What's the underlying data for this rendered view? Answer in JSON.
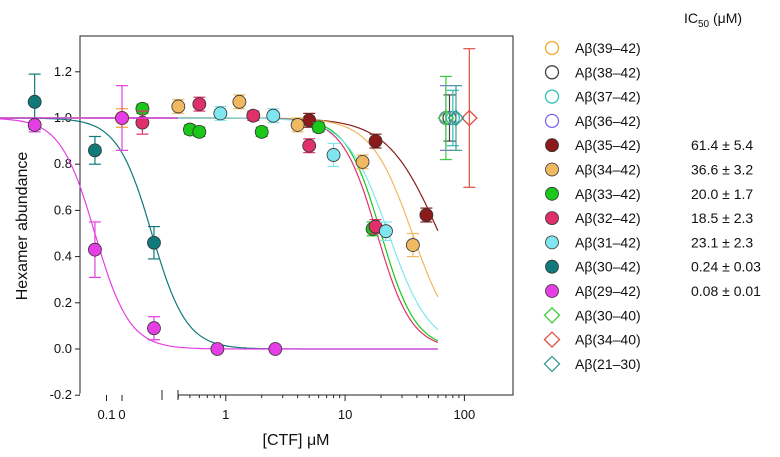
{
  "chart_data": {
    "type": "scatter",
    "ylabel": "Hexamer abundance",
    "xlabel": "[CTF] μM",
    "xscale": "log with separate zero panel",
    "ylim": [
      -0.2,
      1.3
    ],
    "yticks": [
      "-0.2",
      "0.0",
      "0.2",
      "0.4",
      "0.6",
      "0.8",
      "1.0",
      "1.2"
    ],
    "xticks": [
      "0",
      "0.01",
      "0.1",
      "1",
      "10",
      "100"
    ],
    "legend_placement": "right",
    "ic50_header": "IC",
    "ic50_sub": "50",
    "ic50_unit": " (μM)",
    "series": [
      {
        "name": "Aβ(39–42)",
        "color": "#F5A623",
        "marker": "open-circle",
        "ic50": "",
        "points": [
          {
            "x": 0,
            "y": 1.0,
            "err": 0.04
          }
        ]
      },
      {
        "name": "Aβ(38–42)",
        "color": "#444444",
        "marker": "open-circle",
        "ic50": "",
        "points": [
          {
            "x": 75,
            "y": 1.0,
            "err": 0.1
          }
        ]
      },
      {
        "name": "Aβ(37–42)",
        "color": "#2DBDB4",
        "marker": "open-circle",
        "ic50": "",
        "points": [
          {
            "x": 80,
            "y": 1.0,
            "err": 0.12
          }
        ]
      },
      {
        "name": "Aβ(36–42)",
        "color": "#7B68EE",
        "marker": "open-circle",
        "ic50": "",
        "points": [
          {
            "x": 70,
            "y": 1.0,
            "err": 0.14
          }
        ]
      },
      {
        "name": "Aβ(35–42)",
        "color": "#8B1A1A",
        "marker": "filled-circle",
        "ic50": "61.4 ± 5.4",
        "curve": {
          "ic50": 61.4,
          "hill": 2.0
        },
        "points": [
          {
            "x": 5.0,
            "y": 0.99,
            "err": 0.03
          },
          {
            "x": 18,
            "y": 0.9,
            "err": 0.03
          },
          {
            "x": 48,
            "y": 0.58,
            "err": 0.03
          }
        ]
      },
      {
        "name": "Aβ(34–42)",
        "color": "#F0B860",
        "marker": "filled-circle",
        "ic50": "36.6 ± 3.2",
        "curve": {
          "ic50": 36.6,
          "hill": 2.5
        },
        "points": [
          {
            "x": 0.4,
            "y": 1.05,
            "err": 0.03
          },
          {
            "x": 1.3,
            "y": 1.07,
            "err": 0.03
          },
          {
            "x": 4.0,
            "y": 0.97,
            "err": 0.03
          },
          {
            "x": 14,
            "y": 0.81,
            "err": 0.03
          },
          {
            "x": 37,
            "y": 0.45,
            "err": 0.05
          }
        ]
      },
      {
        "name": "Aβ(33–42)",
        "color": "#1AC81A",
        "marker": "filled-circle",
        "ic50": "20.0 ± 1.7",
        "curve": {
          "ic50": 20.0,
          "hill": 3.0
        },
        "points": [
          {
            "x": 0.2,
            "y": 1.04,
            "err": 0.02
          },
          {
            "x": 0.5,
            "y": 0.95,
            "err": 0.02
          },
          {
            "x": 0.6,
            "y": 0.94,
            "err": 0.02
          },
          {
            "x": 2.0,
            "y": 0.94,
            "err": 0.02
          },
          {
            "x": 6.0,
            "y": 0.96,
            "err": 0.02
          },
          {
            "x": 17,
            "y": 0.52,
            "err": 0.03
          }
        ]
      },
      {
        "name": "Aβ(32–42)",
        "color": "#E0306A",
        "marker": "filled-circle",
        "ic50": "18.5 ± 2.3",
        "curve": {
          "ic50": 18.5,
          "hill": 3.0
        },
        "points": [
          {
            "x": 0.2,
            "y": 0.98,
            "err": 0.05
          },
          {
            "x": 0.6,
            "y": 1.06,
            "err": 0.03
          },
          {
            "x": 1.7,
            "y": 1.01,
            "err": 0.02
          },
          {
            "x": 5.0,
            "y": 0.88,
            "err": 0.03
          },
          {
            "x": 18,
            "y": 0.53,
            "err": 0.03
          }
        ]
      },
      {
        "name": "Aβ(31–42)",
        "color": "#7FE6F0",
        "marker": "filled-circle",
        "ic50": "23.1 ± 2.3",
        "curve": {
          "ic50": 23.1,
          "hill": 2.5
        },
        "points": [
          {
            "x": 0.9,
            "y": 1.02,
            "err": 0.03
          },
          {
            "x": 2.5,
            "y": 1.01,
            "err": 0.03
          },
          {
            "x": 8.0,
            "y": 0.84,
            "err": 0.05
          },
          {
            "x": 22,
            "y": 0.51,
            "err": 0.04
          }
        ]
      },
      {
        "name": "Aβ(30–42)",
        "color": "#107A7A",
        "marker": "filled-circle",
        "ic50": "0.24 ± 0.03",
        "curve": {
          "ic50": 0.24,
          "hill": 3.0
        },
        "points": [
          {
            "x": 0.0025,
            "y": 1.03,
            "err": 0.05
          },
          {
            "x": 0.009,
            "y": 1.03,
            "err": 0.08
          },
          {
            "x": 0.025,
            "y": 1.07,
            "err": 0.12
          },
          {
            "x": 0.08,
            "y": 0.86,
            "err": 0.06
          },
          {
            "x": 0.25,
            "y": 0.46,
            "err": 0.07
          }
        ]
      },
      {
        "name": "Aβ(29–42)",
        "color": "#E43EE4",
        "marker": "filled-circle",
        "ic50": "0.08 ± 0.01",
        "curve": {
          "ic50": 0.08,
          "hill": 3.0
        },
        "points": [
          {
            "x": 0,
            "y": 1.0,
            "err": 0.14
          },
          {
            "x": 0.025,
            "y": 0.97,
            "err": 0.03
          },
          {
            "x": 0.08,
            "y": 0.43,
            "err": 0.12
          },
          {
            "x": 0.25,
            "y": 0.09,
            "err": 0.05
          },
          {
            "x": 0.85,
            "y": 0.0,
            "err": 0.0
          },
          {
            "x": 2.6,
            "y": 0.0,
            "err": 0.0
          }
        ]
      },
      {
        "name": "Aβ(30–40)",
        "color": "#3ACD3A",
        "marker": "open-diamond",
        "ic50": "",
        "points": [
          {
            "x": 70,
            "y": 1.0,
            "err": 0.18
          }
        ]
      },
      {
        "name": "Aβ(34–40)",
        "color": "#E05040",
        "marker": "open-diamond",
        "ic50": "",
        "points": [
          {
            "x": 110,
            "y": 1.0,
            "err": 0.3
          }
        ]
      },
      {
        "name": "Aβ(21–30)",
        "color": "#3A9A90",
        "marker": "open-diamond",
        "ic50": "",
        "points": [
          {
            "x": 85,
            "y": 1.0,
            "err": 0.14
          }
        ]
      }
    ]
  }
}
